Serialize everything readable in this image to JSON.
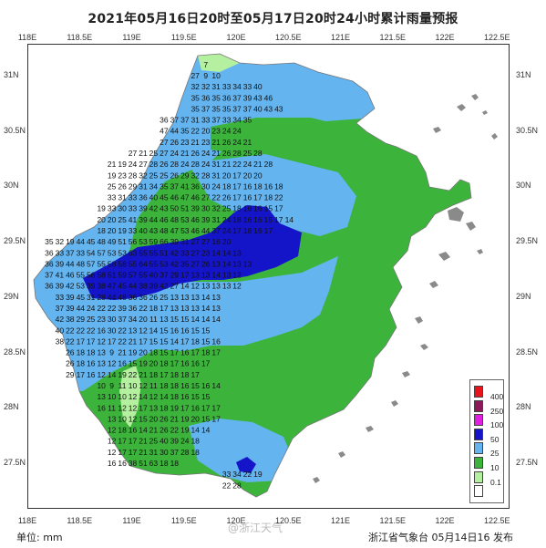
{
  "title": "2021年05月16日20时至05月17日20时24小时累计雨量预报",
  "unit_label": "单位: mm",
  "issuer_label": "浙江省气象台  05月14日16 发布",
  "watermark": "@浙江天气",
  "lon_ticks": [
    "118E",
    "118.5E",
    "119E",
    "119.5E",
    "120E",
    "120.5E",
    "121E",
    "121.5E",
    "122E",
    "122.5E"
  ],
  "lat_ticks": [
    "31N",
    "30.5N",
    "30N",
    "29.5N",
    "29N",
    "28.5N",
    "28N",
    "27.5N"
  ],
  "legend": [
    {
      "label": "400",
      "color": "#e8141c"
    },
    {
      "label": "250",
      "color": "#8c1a5a"
    },
    {
      "label": "100",
      "color": "#e020e0"
    },
    {
      "label": "50",
      "color": "#1414c8"
    },
    {
      "label": "25",
      "color": "#64b4f0"
    },
    {
      "label": "10",
      "color": "#3cb43c"
    },
    {
      "label": "0.1",
      "color": "#b4f0a0"
    },
    {
      "label": "",
      "color": "#ffffff"
    }
  ],
  "colors": {
    "light_green": "#b4f0a0",
    "green": "#3cb43c",
    "light_blue": "#64b4f0",
    "dark_blue": "#1414c8",
    "sea": "#ffffff",
    "islands": "#888888"
  },
  "grid_values": [
    {
      "row": 0,
      "lat": 31.1,
      "lon0": 119.7,
      "values": [
        7
      ]
    },
    {
      "row": 1,
      "lat": 31.0,
      "lon0": 119.6,
      "values": [
        27,
        9,
        10
      ]
    },
    {
      "row": 2,
      "lat": 30.9,
      "lon0": 119.6,
      "values": [
        32,
        32,
        31,
        33,
        34,
        33,
        40
      ]
    },
    {
      "row": 3,
      "lat": 30.8,
      "lon0": 119.6,
      "values": [
        35,
        36,
        35,
        36,
        37,
        39,
        43,
        46
      ]
    },
    {
      "row": 4,
      "lat": 30.7,
      "lon0": 119.6,
      "values": [
        35,
        37,
        35,
        35,
        37,
        37,
        40,
        43,
        43
      ]
    },
    {
      "row": 5,
      "lat": 30.6,
      "lon0": 119.3,
      "values": [
        36,
        37,
        37,
        31,
        33,
        37,
        33,
        34,
        35
      ]
    },
    {
      "row": 6,
      "lat": 30.5,
      "lon0": 119.3,
      "values": [
        47,
        44,
        35,
        22,
        20,
        23,
        24,
        24
      ]
    },
    {
      "row": 7,
      "lat": 30.4,
      "lon0": 119.3,
      "values": [
        27,
        26,
        23,
        21,
        23,
        21,
        26,
        24,
        21
      ]
    },
    {
      "row": 8,
      "lat": 30.3,
      "lon0": 119.0,
      "values": [
        27,
        21,
        25,
        27,
        24,
        21,
        26,
        24,
        21,
        26,
        28,
        25,
        28
      ]
    },
    {
      "row": 9,
      "lat": 30.2,
      "lon0": 118.8,
      "values": [
        21,
        19,
        24,
        27,
        28,
        26,
        28,
        24,
        28,
        24,
        31,
        21,
        22,
        24,
        21,
        28
      ]
    },
    {
      "row": 10,
      "lat": 30.1,
      "lon0": 118.8,
      "values": [
        19,
        23,
        28,
        32,
        25,
        25,
        26,
        29,
        32,
        28,
        31,
        20,
        17,
        20,
        20
      ]
    },
    {
      "row": 11,
      "lat": 30.0,
      "lon0": 118.8,
      "values": [
        25,
        26,
        29,
        31,
        34,
        35,
        37,
        41,
        36,
        30,
        24,
        18,
        17,
        16,
        18,
        16,
        18
      ]
    },
    {
      "row": 12,
      "lat": 29.9,
      "lon0": 118.8,
      "values": [
        33,
        31,
        33,
        36,
        40,
        45,
        46,
        47,
        46,
        27,
        22,
        26,
        17,
        16,
        17,
        18,
        22
      ]
    },
    {
      "row": 13,
      "lat": 29.8,
      "lon0": 118.7,
      "values": [
        19,
        33,
        30,
        33,
        39,
        42,
        43,
        50,
        51,
        39,
        30,
        32,
        25,
        18,
        16,
        16,
        15,
        17
      ]
    },
    {
      "row": 14,
      "lat": 29.7,
      "lon0": 118.7,
      "values": [
        20,
        20,
        25,
        41,
        39,
        44,
        46,
        48,
        53,
        46,
        39,
        31,
        24,
        18,
        16,
        16,
        15,
        17,
        14
      ]
    },
    {
      "row": 15,
      "lat": 29.6,
      "lon0": 118.7,
      "values": [
        18,
        20,
        19,
        33,
        40,
        43,
        48,
        47,
        53,
        46,
        44,
        37,
        24,
        17,
        18,
        16,
        17
      ]
    },
    {
      "row": 16,
      "lat": 29.5,
      "lon0": 118.2,
      "values": [
        35,
        32,
        19,
        44,
        45,
        48,
        49,
        51,
        56,
        53,
        59,
        66,
        39,
        31,
        27,
        27,
        16,
        20
      ]
    },
    {
      "row": 17,
      "lat": 29.4,
      "lon0": 118.2,
      "values": [
        36,
        33,
        37,
        33,
        54,
        57,
        53,
        53,
        63,
        55,
        55,
        51,
        42,
        33,
        27,
        23,
        14,
        14,
        13
      ]
    },
    {
      "row": 18,
      "lat": 29.3,
      "lon0": 118.2,
      "values": [
        36,
        39,
        44,
        48,
        57,
        55,
        58,
        58,
        55,
        64,
        55,
        53,
        42,
        35,
        27,
        26,
        13,
        14,
        13,
        13
      ]
    },
    {
      "row": 19,
      "lat": 29.2,
      "lon0": 118.2,
      "values": [
        37,
        41,
        46,
        55,
        56,
        58,
        51,
        59,
        57,
        55,
        40,
        37,
        29,
        17,
        13,
        13,
        14,
        13,
        12
      ]
    },
    {
      "row": 20,
      "lat": 29.1,
      "lon0": 118.2,
      "values": [
        36,
        39,
        42,
        53,
        39,
        38,
        47,
        45,
        44,
        38,
        39,
        42,
        27,
        14,
        12,
        13,
        13,
        13,
        12
      ]
    },
    {
      "row": 21,
      "lat": 29.0,
      "lon0": 118.3,
      "values": [
        33,
        39,
        45,
        31,
        28,
        44,
        48,
        36,
        36,
        26,
        25,
        13,
        13,
        13,
        14,
        13
      ]
    },
    {
      "row": 22,
      "lat": 28.9,
      "lon0": 118.3,
      "values": [
        37,
        39,
        44,
        24,
        22,
        22,
        39,
        36,
        22,
        18,
        17,
        13,
        13,
        13,
        14,
        13
      ]
    },
    {
      "row": 23,
      "lat": 28.8,
      "lon0": 118.3,
      "values": [
        42,
        38,
        29,
        25,
        23,
        30,
        37,
        34,
        20,
        11,
        13,
        15,
        15,
        14,
        14,
        14
      ]
    },
    {
      "row": 24,
      "lat": 28.7,
      "lon0": 118.3,
      "values": [
        40,
        22,
        22,
        22,
        16,
        30,
        22,
        13,
        12,
        14,
        15,
        16,
        16,
        15,
        15
      ]
    },
    {
      "row": 25,
      "lat": 28.6,
      "lon0": 118.3,
      "values": [
        38,
        22,
        17,
        17,
        12,
        17,
        22,
        21,
        17,
        15,
        15,
        14,
        17,
        18,
        15,
        16
      ]
    },
    {
      "row": 26,
      "lat": 28.5,
      "lon0": 118.4,
      "values": [
        26,
        18,
        18,
        13,
        9,
        21,
        19,
        20,
        18,
        15,
        17,
        16,
        17,
        18,
        17
      ]
    },
    {
      "row": 27,
      "lat": 28.4,
      "lon0": 118.4,
      "values": [
        26,
        18,
        16,
        13,
        12,
        16,
        15,
        19,
        20,
        18,
        17,
        16,
        16,
        17
      ]
    },
    {
      "row": 28,
      "lat": 28.3,
      "lon0": 118.4,
      "values": [
        29,
        17,
        16,
        12,
        14,
        19,
        22,
        21,
        18,
        17,
        18,
        18,
        17
      ]
    },
    {
      "row": 29,
      "lat": 28.2,
      "lon0": 118.7,
      "values": [
        10,
        9,
        11,
        10,
        12,
        11,
        18,
        18,
        16,
        15,
        16,
        14
      ]
    },
    {
      "row": 30,
      "lat": 28.1,
      "lon0": 118.7,
      "values": [
        13,
        10,
        10,
        12,
        14,
        12,
        14,
        18,
        16,
        15,
        15
      ]
    },
    {
      "row": 31,
      "lat": 28.0,
      "lon0": 118.7,
      "values": [
        16,
        11,
        12,
        12,
        17,
        13,
        18,
        19,
        17,
        16,
        17,
        17
      ]
    },
    {
      "row": 32,
      "lat": 27.9,
      "lon0": 118.8,
      "values": [
        13,
        10,
        12,
        15,
        20,
        26,
        21,
        19,
        20,
        15,
        17
      ]
    },
    {
      "row": 33,
      "lat": 27.8,
      "lon0": 118.8,
      "values": [
        12,
        18,
        16,
        14,
        21,
        26,
        22,
        19,
        14,
        14
      ]
    },
    {
      "row": 34,
      "lat": 27.7,
      "lon0": 118.8,
      "values": [
        12,
        17,
        17,
        21,
        25,
        40,
        39,
        24,
        18
      ]
    },
    {
      "row": 35,
      "lat": 27.6,
      "lon0": 118.8,
      "values": [
        12,
        17,
        17,
        21,
        31,
        30,
        37,
        28,
        18
      ]
    },
    {
      "row": 36,
      "lat": 27.5,
      "lon0": 118.8,
      "values": [
        16,
        16,
        38,
        51,
        63,
        18,
        18
      ]
    },
    {
      "row": 37,
      "lat": 27.4,
      "lon0": 119.9,
      "values": [
        33,
        34,
        22,
        19
      ]
    },
    {
      "row": 38,
      "lat": 27.3,
      "lon0": 119.9,
      "values": [
        22,
        28
      ]
    }
  ]
}
